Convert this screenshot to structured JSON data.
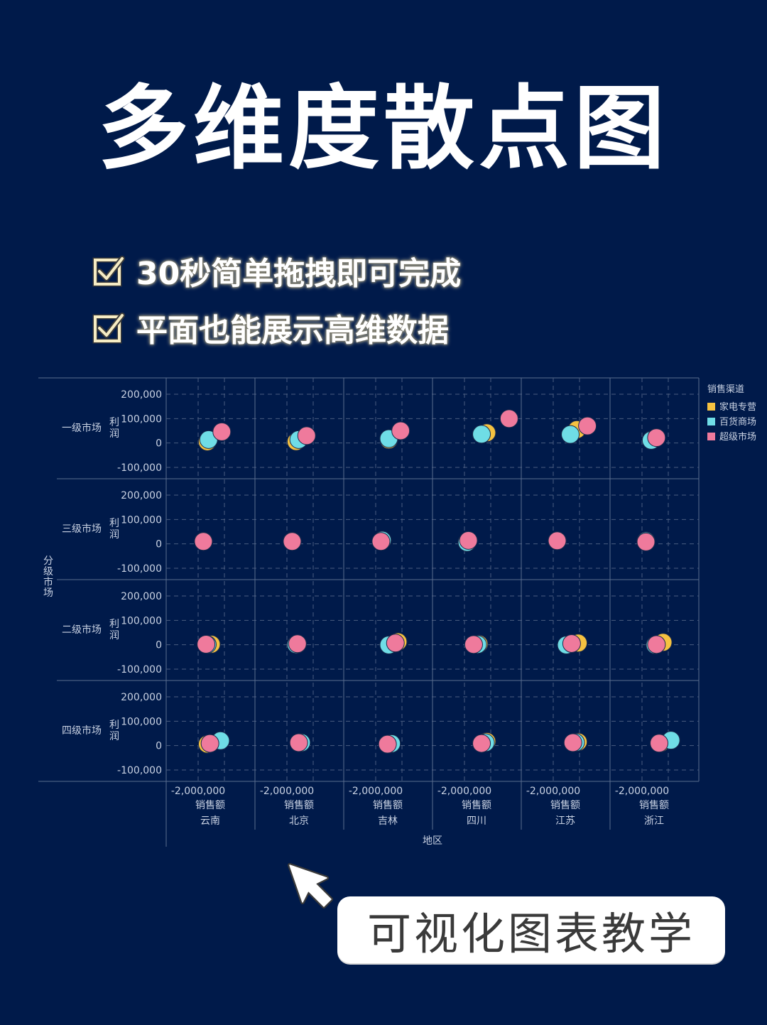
{
  "title": "多维度散点图",
  "features": [
    "30秒简单拖拽即可完成",
    "平面也能展示高维数据"
  ],
  "badge": {
    "text": "可视化图表教学"
  },
  "colors": {
    "background": "#001a4a",
    "家电专营": "#f5c241",
    "百货商场": "#6fdde6",
    "超级市场": "#ef7a9c"
  },
  "chart_data": {
    "type": "scatter",
    "facet_rows": [
      "一级市场",
      "三级市场",
      "二级市场",
      "四级市场"
    ],
    "facet_cols": [
      "云南",
      "北京",
      "吉林",
      "四川",
      "江苏",
      "浙江"
    ],
    "row_axis_title": "分级市场",
    "col_axis_title": "地区",
    "xlabel": "销售额",
    "ylabel": "利润",
    "ylim": [
      -120000,
      220000
    ],
    "yticks": [
      200000,
      100000,
      0,
      -100000
    ],
    "ytick_labels": [
      "200,000",
      "100,000",
      "0",
      "-100,000"
    ],
    "xlim": [
      -2600000,
      2400000
    ],
    "xticks": [
      -2000000
    ],
    "xtick_labels": [
      "-2,000,000"
    ],
    "legend": {
      "title": "销售渠道",
      "position": "right",
      "entries": [
        "家电专营",
        "百货商场",
        "超级市场"
      ]
    },
    "grid": true,
    "points": [
      {
        "row": "一级市场",
        "col": "云南",
        "series": "家电专营",
        "x": -1300000,
        "y": 5000
      },
      {
        "row": "一级市场",
        "col": "云南",
        "series": "百货商场",
        "x": -1200000,
        "y": 14000
      },
      {
        "row": "一级市场",
        "col": "云南",
        "series": "超级市场",
        "x": -200000,
        "y": 46000
      },
      {
        "row": "一级市场",
        "col": "北京",
        "series": "家电专营",
        "x": -1300000,
        "y": 6000
      },
      {
        "row": "一级市场",
        "col": "北京",
        "series": "百货商场",
        "x": -1100000,
        "y": 14000
      },
      {
        "row": "一级市场",
        "col": "北京",
        "series": "超级市场",
        "x": -500000,
        "y": 30000
      },
      {
        "row": "一级市场",
        "col": "吉林",
        "series": "家电专营",
        "x": -1000000,
        "y": 13000
      },
      {
        "row": "一级市场",
        "col": "吉林",
        "series": "百货商场",
        "x": -1000000,
        "y": 18000
      },
      {
        "row": "一级市场",
        "col": "吉林",
        "series": "超级市场",
        "x": -100000,
        "y": 50000
      },
      {
        "row": "一级市场",
        "col": "四川",
        "series": "家电专营",
        "x": -300000,
        "y": 42000
      },
      {
        "row": "一级市场",
        "col": "四川",
        "series": "百货商场",
        "x": -700000,
        "y": 36000
      },
      {
        "row": "一级市场",
        "col": "四川",
        "series": "超级市场",
        "x": 1400000,
        "y": 100000
      },
      {
        "row": "一级市场",
        "col": "江苏",
        "series": "家电专营",
        "x": -200000,
        "y": 55000
      },
      {
        "row": "一级市场",
        "col": "江苏",
        "series": "百货商场",
        "x": -700000,
        "y": 35000
      },
      {
        "row": "一级市场",
        "col": "江苏",
        "series": "超级市场",
        "x": 600000,
        "y": 70000
      },
      {
        "row": "一级市场",
        "col": "浙江",
        "series": "家电专营",
        "x": -1300000,
        "y": 12000
      },
      {
        "row": "一级市场",
        "col": "浙江",
        "series": "百货商场",
        "x": -1300000,
        "y": 11000
      },
      {
        "row": "一级市场",
        "col": "浙江",
        "series": "超级市场",
        "x": -900000,
        "y": 22000
      },
      {
        "row": "三级市场",
        "col": "云南",
        "series": "家电专营",
        "x": -1600000,
        "y": 10000
      },
      {
        "row": "三级市场",
        "col": "云南",
        "series": "百货商场",
        "x": -1600000,
        "y": 11000
      },
      {
        "row": "三级市场",
        "col": "云南",
        "series": "超级市场",
        "x": -1600000,
        "y": 10000
      },
      {
        "row": "三级市场",
        "col": "北京",
        "series": "家电专营",
        "x": -1600000,
        "y": 11000
      },
      {
        "row": "三级市场",
        "col": "北京",
        "series": "百货商场",
        "x": -1600000,
        "y": 11000
      },
      {
        "row": "三级市场",
        "col": "北京",
        "series": "超级市场",
        "x": -1600000,
        "y": 10000
      },
      {
        "row": "三级市场",
        "col": "吉林",
        "series": "家电专营",
        "x": -1500000,
        "y": 15000
      },
      {
        "row": "三级市场",
        "col": "吉林",
        "series": "百货商场",
        "x": -1500000,
        "y": 15000
      },
      {
        "row": "三级市场",
        "col": "吉林",
        "series": "超级市场",
        "x": -1600000,
        "y": 10000
      },
      {
        "row": "三级市场",
        "col": "四川",
        "series": "家电专营",
        "x": -1800000,
        "y": 6000
      },
      {
        "row": "三级市场",
        "col": "四川",
        "series": "百货商场",
        "x": -1800000,
        "y": 6000
      },
      {
        "row": "三级市场",
        "col": "四川",
        "series": "超级市场",
        "x": -1700000,
        "y": 14000
      },
      {
        "row": "三级市场",
        "col": "江苏",
        "series": "家电专营",
        "x": -1700000,
        "y": 13000
      },
      {
        "row": "三级市场",
        "col": "江苏",
        "series": "百货商场",
        "x": -1700000,
        "y": 13000
      },
      {
        "row": "三级市场",
        "col": "江苏",
        "series": "超级市场",
        "x": -1700000,
        "y": 13000
      },
      {
        "row": "三级市场",
        "col": "浙江",
        "series": "家电专营",
        "x": -1700000,
        "y": 12000
      },
      {
        "row": "三级市场",
        "col": "浙江",
        "series": "百货商场",
        "x": -1700000,
        "y": 12000
      },
      {
        "row": "三级市场",
        "col": "浙江",
        "series": "超级市场",
        "x": -1700000,
        "y": 8000
      },
      {
        "row": "二级市场",
        "col": "云南",
        "series": "家电专营",
        "x": -1000000,
        "y": 2000
      },
      {
        "row": "二级市场",
        "col": "云南",
        "series": "百货商场",
        "x": -1300000,
        "y": 1000
      },
      {
        "row": "二级市场",
        "col": "云南",
        "series": "超级市场",
        "x": -1400000,
        "y": 2000
      },
      {
        "row": "二级市场",
        "col": "北京",
        "series": "家电专营",
        "x": -1200000,
        "y": 3000
      },
      {
        "row": "二级市场",
        "col": "北京",
        "series": "百货商场",
        "x": -1300000,
        "y": 1000
      },
      {
        "row": "二级市场",
        "col": "北京",
        "series": "超级市场",
        "x": -1200000,
        "y": 4000
      },
      {
        "row": "二级市场",
        "col": "吉林",
        "series": "家电专营",
        "x": -300000,
        "y": 12000
      },
      {
        "row": "二级市场",
        "col": "吉林",
        "series": "百货商场",
        "x": -1000000,
        "y": -1000
      },
      {
        "row": "二级市场",
        "col": "吉林",
        "series": "超级市场",
        "x": -500000,
        "y": 7000
      },
      {
        "row": "二级市场",
        "col": "四川",
        "series": "家电专营",
        "x": -900000,
        "y": 3000
      },
      {
        "row": "二级市场",
        "col": "四川",
        "series": "百货商场",
        "x": -1000000,
        "y": 1000
      },
      {
        "row": "二级市场",
        "col": "四川",
        "series": "超级市场",
        "x": -1300000,
        "y": 1000
      },
      {
        "row": "二级市场",
        "col": "江苏",
        "series": "家电专营",
        "x": -100000,
        "y": 7000
      },
      {
        "row": "二级市场",
        "col": "江苏",
        "series": "百货商场",
        "x": -1000000,
        "y": -1000
      },
      {
        "row": "二级市场",
        "col": "江苏",
        "series": "超级市场",
        "x": -600000,
        "y": 5000
      },
      {
        "row": "二级市场",
        "col": "浙江",
        "series": "家电专营",
        "x": -400000,
        "y": 10000
      },
      {
        "row": "二级市场",
        "col": "浙江",
        "series": "百货商场",
        "x": -1000000,
        "y": -1000
      },
      {
        "row": "二级市场",
        "col": "浙江",
        "series": "超级市场",
        "x": -900000,
        "y": 1000
      },
      {
        "row": "四级市场",
        "col": "云南",
        "series": "家电专营",
        "x": -1300000,
        "y": 6000
      },
      {
        "row": "四级市场",
        "col": "云南",
        "series": "百货商场",
        "x": -300000,
        "y": 20000
      },
      {
        "row": "四级市场",
        "col": "云南",
        "series": "超级市场",
        "x": -1100000,
        "y": 9000
      },
      {
        "row": "四级市场",
        "col": "北京",
        "series": "家电专营",
        "x": -1000000,
        "y": 12000
      },
      {
        "row": "四级市场",
        "col": "北京",
        "series": "百货商场",
        "x": -900000,
        "y": 12000
      },
      {
        "row": "四级市场",
        "col": "北京",
        "series": "超级市场",
        "x": -1100000,
        "y": 12000
      },
      {
        "row": "四级市场",
        "col": "吉林",
        "series": "家电专营",
        "x": -900000,
        "y": 7000
      },
      {
        "row": "四级市场",
        "col": "吉林",
        "series": "百货商场",
        "x": -800000,
        "y": 8000
      },
      {
        "row": "四级市场",
        "col": "吉林",
        "series": "超级市场",
        "x": -1100000,
        "y": 6000
      },
      {
        "row": "四级市场",
        "col": "四川",
        "series": "家电专营",
        "x": -300000,
        "y": 17000
      },
      {
        "row": "四级市场",
        "col": "四川",
        "series": "百货商场",
        "x": -400000,
        "y": 12000
      },
      {
        "row": "四级市场",
        "col": "四川",
        "series": "超级市场",
        "x": -700000,
        "y": 9000
      },
      {
        "row": "四级市场",
        "col": "江苏",
        "series": "家电专营",
        "x": -100000,
        "y": 15000
      },
      {
        "row": "四级市场",
        "col": "江苏",
        "series": "百货商场",
        "x": -300000,
        "y": 13000
      },
      {
        "row": "四级市场",
        "col": "江苏",
        "series": "超级市场",
        "x": -500000,
        "y": 12000
      },
      {
        "row": "四级市场",
        "col": "浙江",
        "series": "家电专营",
        "x": -600000,
        "y": 10000
      },
      {
        "row": "四级市场",
        "col": "浙江",
        "series": "百货商场",
        "x": 200000,
        "y": 22000
      },
      {
        "row": "四级市场",
        "col": "浙江",
        "series": "超级市场",
        "x": -700000,
        "y": 10000
      }
    ]
  }
}
